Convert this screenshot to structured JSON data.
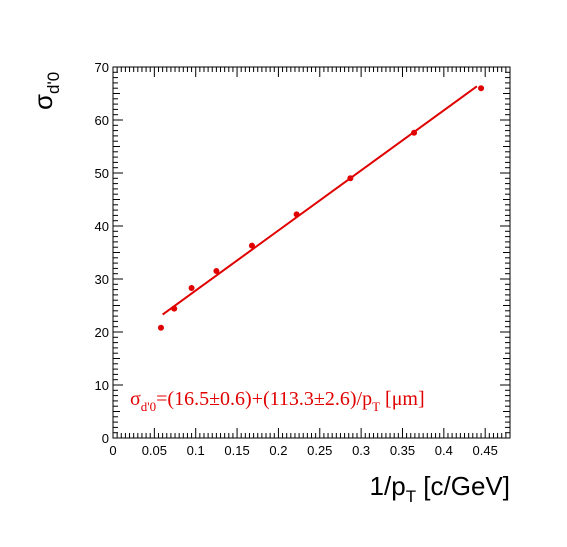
{
  "chart_data": {
    "type": "scatter",
    "x": [
      0.058,
      0.074,
      0.095,
      0.125,
      0.168,
      0.222,
      0.287,
      0.364,
      0.445
    ],
    "y": [
      20.8,
      24.4,
      28.3,
      31.5,
      36.3,
      42.2,
      49.0,
      57.6,
      66.0
    ],
    "fit": {
      "type": "line",
      "intercept": 16.5,
      "slope": 113.3,
      "x_range": [
        0.06,
        0.44
      ]
    },
    "xlim": [
      0,
      0.48
    ],
    "ylim": [
      0,
      70
    ],
    "xticks": [
      "0",
      "0.05",
      "0.1",
      "0.15",
      "0.2",
      "0.25",
      "0.3",
      "0.35",
      "0.4",
      "0.45"
    ],
    "yticks": [
      "0",
      "10",
      "20",
      "30",
      "40",
      "50",
      "60",
      "70"
    ],
    "xlabel": {
      "main": "1/p",
      "sub": "T",
      "rest": " [c/GeV]"
    },
    "ylabel": {
      "main": "σ",
      "sub": "d'0"
    },
    "annotation": {
      "main": "σ",
      "sub1": "d'0",
      "mid": "=(16.5±0.6)+(113.3±2.6)/p",
      "sub2": "T",
      "rest": " [μm]"
    },
    "colors": {
      "marker": "#e00000",
      "fit": "#e00000",
      "axes": "#000000"
    },
    "grid": false
  }
}
